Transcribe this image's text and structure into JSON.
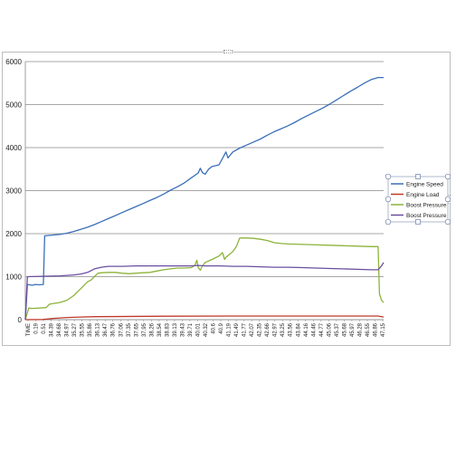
{
  "chart_data": {
    "type": "line",
    "title": "",
    "xlabel": "",
    "ylabel": "",
    "ylim": [
      0,
      6000
    ],
    "yticks": [
      0,
      1000,
      2000,
      3000,
      4000,
      5000,
      6000
    ],
    "grid": true,
    "legend_position": "right",
    "x_tick_labels": [
      "TIME",
      "0.19",
      "0.51",
      "34.39",
      "34.68",
      "34.97",
      "35.27",
      "35.55",
      "35.86",
      "36.13",
      "36.47",
      "36.76",
      "37.06",
      "37.35",
      "37.65",
      "37.95",
      "38.26",
      "38.54",
      "38.83",
      "39.13",
      "39.43",
      "39.71",
      "40.01",
      "40.32",
      "40.6",
      "40.9",
      "41.19",
      "41.49",
      "41.77",
      "42.07",
      "42.35",
      "42.66",
      "42.97",
      "43.25",
      "43.56",
      "43.84",
      "44.16",
      "44.46",
      "44.77",
      "45.06",
      "45.37",
      "45.68",
      "45.97",
      "46.28",
      "46.55",
      "46.86",
      "47.15"
    ],
    "series": [
      {
        "name": "Engine Speed",
        "color": "#3a6fb8",
        "points": [
          [
            0,
            0
          ],
          [
            0.3,
            820
          ],
          [
            1,
            800
          ],
          [
            1.5,
            820
          ],
          [
            2,
            810
          ],
          [
            2.6,
            820
          ],
          [
            2.8,
            1950
          ],
          [
            3.5,
            1960
          ],
          [
            5,
            1980
          ],
          [
            6,
            2010
          ],
          [
            7,
            2050
          ],
          [
            8,
            2100
          ],
          [
            9,
            2150
          ],
          [
            10,
            2210
          ],
          [
            11,
            2280
          ],
          [
            12,
            2350
          ],
          [
            13,
            2420
          ],
          [
            14,
            2490
          ],
          [
            15,
            2560
          ],
          [
            16,
            2630
          ],
          [
            17,
            2700
          ],
          [
            18,
            2770
          ],
          [
            19,
            2840
          ],
          [
            20,
            2920
          ],
          [
            21,
            3010
          ],
          [
            22,
            3090
          ],
          [
            23,
            3180
          ],
          [
            24,
            3300
          ],
          [
            25,
            3410
          ],
          [
            25.3,
            3520
          ],
          [
            25.6,
            3420
          ],
          [
            26,
            3380
          ],
          [
            26.5,
            3500
          ],
          [
            27,
            3560
          ],
          [
            28,
            3600
          ],
          [
            28.5,
            3750
          ],
          [
            29,
            3900
          ],
          [
            29.3,
            3760
          ],
          [
            29.6,
            3820
          ],
          [
            30,
            3900
          ],
          [
            31,
            3990
          ],
          [
            32,
            4060
          ],
          [
            33,
            4130
          ],
          [
            34,
            4200
          ],
          [
            35,
            4290
          ],
          [
            36,
            4370
          ],
          [
            37,
            4440
          ],
          [
            38,
            4510
          ],
          [
            39,
            4590
          ],
          [
            40,
            4680
          ],
          [
            41,
            4760
          ],
          [
            42,
            4840
          ],
          [
            43,
            4920
          ],
          [
            44,
            5010
          ],
          [
            45,
            5110
          ],
          [
            46,
            5210
          ],
          [
            47,
            5310
          ],
          [
            48,
            5400
          ],
          [
            49,
            5500
          ],
          [
            50,
            5580
          ],
          [
            51,
            5630
          ],
          [
            51.8,
            5630
          ]
        ]
      },
      {
        "name": "Engine Load",
        "color": "#c0392b",
        "points": [
          [
            0,
            0
          ],
          [
            2.5,
            5
          ],
          [
            4,
            30
          ],
          [
            6,
            50
          ],
          [
            8,
            60
          ],
          [
            10,
            70
          ],
          [
            20,
            80
          ],
          [
            30,
            85
          ],
          [
            40,
            85
          ],
          [
            51,
            85
          ],
          [
            51.8,
            60
          ]
        ]
      },
      {
        "name": "Boost Pressure",
        "color": "#8db33a",
        "points": [
          [
            0,
            0
          ],
          [
            0.5,
            270
          ],
          [
            1,
            260
          ],
          [
            3,
            280
          ],
          [
            3.5,
            360
          ],
          [
            5,
            400
          ],
          [
            6,
            450
          ],
          [
            7,
            560
          ],
          [
            8,
            720
          ],
          [
            9,
            880
          ],
          [
            9.5,
            920
          ],
          [
            10,
            1000
          ],
          [
            10.5,
            1080
          ],
          [
            11,
            1090
          ],
          [
            12,
            1100
          ],
          [
            13,
            1100
          ],
          [
            14,
            1080
          ],
          [
            15,
            1070
          ],
          [
            16,
            1080
          ],
          [
            17,
            1090
          ],
          [
            18,
            1100
          ],
          [
            19,
            1130
          ],
          [
            20,
            1160
          ],
          [
            21,
            1180
          ],
          [
            22,
            1200
          ],
          [
            23,
            1200
          ],
          [
            24,
            1210
          ],
          [
            24.5,
            1260
          ],
          [
            24.8,
            1380
          ],
          [
            25,
            1210
          ],
          [
            25.3,
            1150
          ],
          [
            25.6,
            1250
          ],
          [
            26,
            1330
          ],
          [
            27,
            1400
          ],
          [
            28,
            1480
          ],
          [
            28.5,
            1560
          ],
          [
            28.8,
            1400
          ],
          [
            29,
            1450
          ],
          [
            30,
            1580
          ],
          [
            30.5,
            1700
          ],
          [
            31,
            1900
          ],
          [
            32,
            1900
          ],
          [
            33,
            1890
          ],
          [
            34,
            1870
          ],
          [
            35,
            1840
          ],
          [
            36,
            1790
          ],
          [
            37,
            1770
          ],
          [
            38,
            1760
          ],
          [
            40,
            1750
          ],
          [
            42,
            1740
          ],
          [
            44,
            1730
          ],
          [
            46,
            1720
          ],
          [
            48,
            1710
          ],
          [
            50,
            1700
          ],
          [
            51,
            1700
          ],
          [
            51.2,
            600
          ],
          [
            51.5,
            450
          ],
          [
            51.8,
            400
          ]
        ]
      },
      {
        "name": "Boost Pressure",
        "color": "#6a4fa0",
        "points": [
          [
            0,
            0
          ],
          [
            0.3,
            1000
          ],
          [
            3,
            1010
          ],
          [
            5,
            1020
          ],
          [
            7,
            1040
          ],
          [
            8,
            1060
          ],
          [
            9,
            1100
          ],
          [
            10,
            1180
          ],
          [
            11,
            1220
          ],
          [
            12,
            1240
          ],
          [
            14,
            1240
          ],
          [
            16,
            1250
          ],
          [
            18,
            1250
          ],
          [
            20,
            1250
          ],
          [
            22,
            1250
          ],
          [
            24,
            1250
          ],
          [
            25,
            1260
          ],
          [
            26,
            1250
          ],
          [
            28,
            1250
          ],
          [
            30,
            1240
          ],
          [
            32,
            1240
          ],
          [
            34,
            1230
          ],
          [
            36,
            1220
          ],
          [
            38,
            1220
          ],
          [
            40,
            1210
          ],
          [
            42,
            1200
          ],
          [
            44,
            1190
          ],
          [
            46,
            1180
          ],
          [
            48,
            1170
          ],
          [
            50,
            1160
          ],
          [
            51,
            1160
          ],
          [
            51.5,
            1250
          ],
          [
            51.8,
            1330
          ]
        ]
      }
    ]
  }
}
